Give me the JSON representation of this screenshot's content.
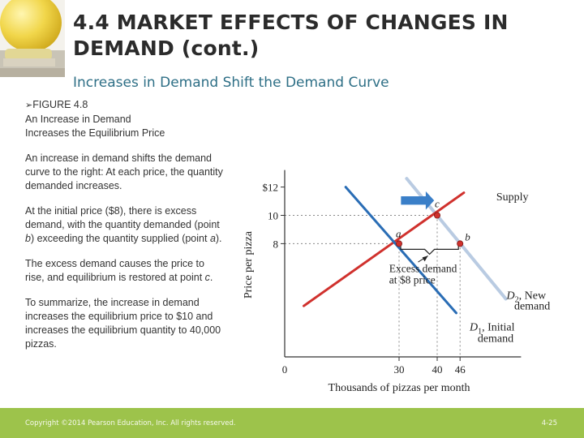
{
  "title_line1": "4.4 MARKET EFFECTS OF CHANGES IN",
  "title_line2": "DEMAND (cont.)",
  "subtitle": "Increases in Demand Shift the Demand Curve",
  "figure": {
    "arrow_glyph": "➢",
    "label": "FIGURE 4.8",
    "caption_line1": "An Increase in Demand",
    "caption_line2": "Increases the Equilibrium Price"
  },
  "paragraphs": {
    "p1": "An increase in demand shifts the demand curve to the right: At each price, the quantity demanded increases.",
    "p2_a": "At the initial price ($8), there is excess demand, with the quantity demanded (point ",
    "p2_b": "b",
    "p2_c": ") exceeding the quantity supplied (point ",
    "p2_d": "a",
    "p2_e": ").",
    "p3_a": "The excess demand causes the price to rise, and equilibrium is restored at point ",
    "p3_b": "c",
    "p3_c": ".",
    "p4": "To summarize, the increase in demand increases the equilibrium price to $10 and increases the equilibrium quantity to 40,000 pizzas."
  },
  "chart_data": {
    "type": "line",
    "ylabel": "Price per pizza",
    "xlabel": "Thousands of pizzas per month",
    "origin_label": "0",
    "y_ticks": [
      {
        "value": 12,
        "label": "$12"
      },
      {
        "value": 10,
        "label": "10"
      },
      {
        "value": 8,
        "label": "8"
      }
    ],
    "x_ticks": [
      {
        "value": 30,
        "label": "30"
      },
      {
        "value": 40,
        "label": "40"
      },
      {
        "value": 46,
        "label": "46"
      }
    ],
    "series": [
      {
        "name": "Supply",
        "color": "#d0312d",
        "points": [
          [
            5,
            3.6
          ],
          [
            47,
            11.6
          ]
        ]
      },
      {
        "name": "D1, Initial demand",
        "color": "#2a6db5",
        "points": [
          [
            16,
            12
          ],
          [
            45,
            3.1
          ]
        ]
      },
      {
        "name": "D2, New demand",
        "color": "#b9cbe2",
        "points": [
          [
            32,
            12.6
          ],
          [
            58,
            4.1
          ]
        ]
      }
    ],
    "points": [
      {
        "label": "a",
        "x": 30,
        "y": 8
      },
      {
        "label": "b",
        "x": 46,
        "y": 8
      },
      {
        "label": "c",
        "x": 40,
        "y": 10
      }
    ],
    "labels": {
      "supply": "Supply",
      "d2_line1": "D",
      "d2_sub": "2",
      "d2_rest": ", New",
      "d2_line2": "demand",
      "d1_line1": "D",
      "d1_sub": "1",
      "d1_rest": ", Initial",
      "d1_line2": "demand",
      "excess_line1": "Excess demand",
      "excess_line2": "at $8 price"
    },
    "shift_arrow_color": "#3a7fc8"
  },
  "footer": {
    "copyright": "Copyright ©2014 Pearson Education, Inc. All rights reserved.",
    "page": "4-25"
  },
  "colors": {
    "footer_bar": "#9dc34b",
    "subtitle": "#2e6f86",
    "title": "#2b2b2b"
  }
}
